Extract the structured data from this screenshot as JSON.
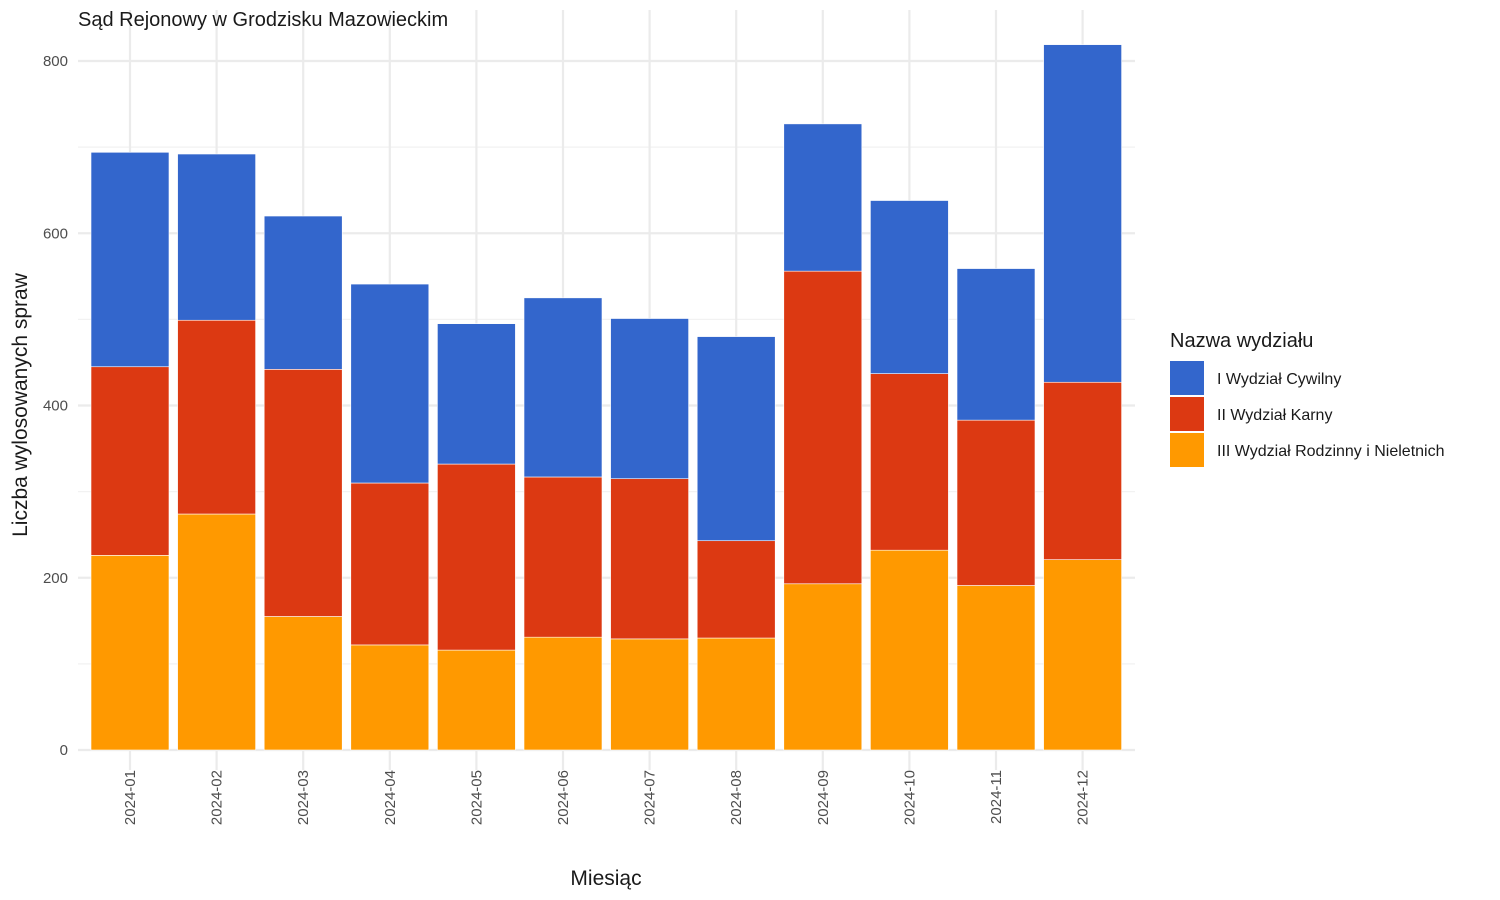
{
  "chart_data": {
    "type": "bar",
    "stacked": true,
    "title": "Sąd Rejonowy w Grodzisku Mazowieckim",
    "xlabel": "Miesiąc",
    "ylabel": "Liczba wylosowanych spraw",
    "ylim": [
      0,
      860
    ],
    "y_ticks": [
      0,
      200,
      400,
      600,
      800
    ],
    "grid": true,
    "legend_title": "Nazwa wydziału",
    "legend_position": "right",
    "categories": [
      "2024-01",
      "2024-02",
      "2024-03",
      "2024-04",
      "2024-05",
      "2024-06",
      "2024-07",
      "2024-08",
      "2024-09",
      "2024-10",
      "2024-11",
      "2024-12"
    ],
    "series": [
      {
        "name": "I Wydział Cywilny",
        "color": "#3366cc",
        "values": [
          249,
          193,
          178,
          231,
          163,
          208,
          186,
          237,
          171,
          201,
          176,
          392
        ]
      },
      {
        "name": "II Wydział Karny",
        "color": "#dc3912",
        "values": [
          219,
          225,
          287,
          188,
          216,
          186,
          186,
          113,
          363,
          205,
          192,
          206
        ]
      },
      {
        "name": "III Wydział Rodzinny i Nieletnich",
        "color": "#ff9900",
        "values": [
          226,
          274,
          155,
          122,
          116,
          131,
          129,
          130,
          193,
          232,
          191,
          221
        ]
      }
    ]
  }
}
